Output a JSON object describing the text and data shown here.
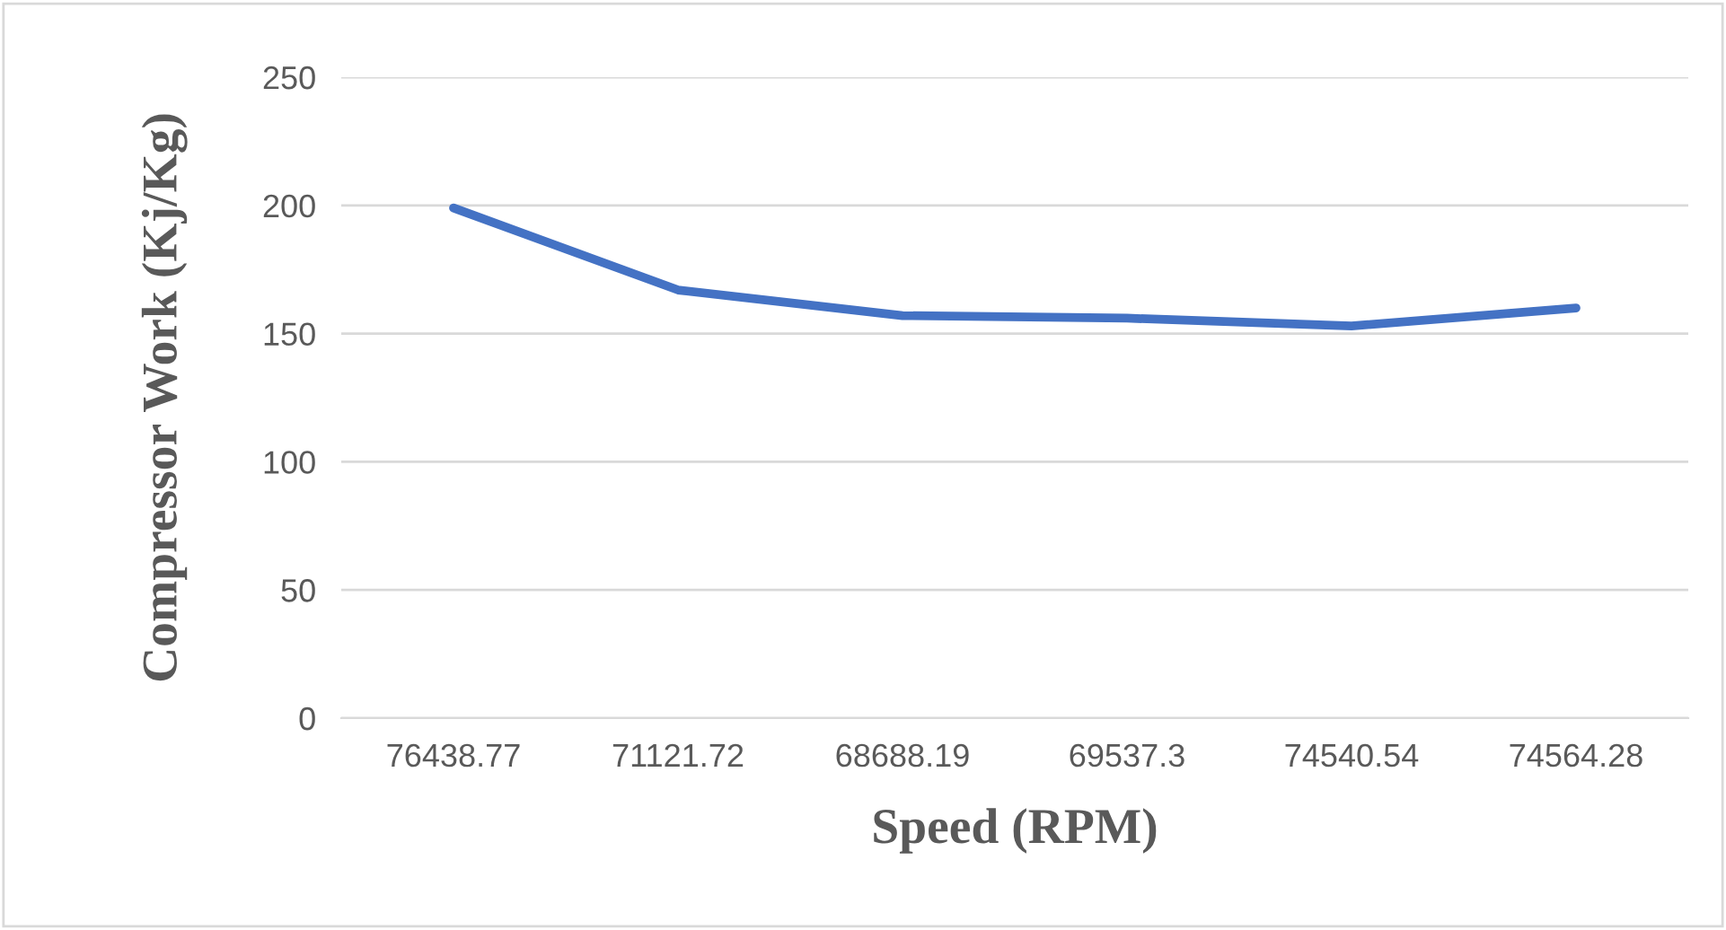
{
  "chart_data": {
    "type": "line",
    "xlabel": "Speed (RPM)",
    "ylabel": "Compressor Work (Kj/Kg)",
    "categories": [
      "76438.77",
      "71121.72",
      "68688.19",
      "69537.3",
      "74540.54",
      "74564.28"
    ],
    "series": [
      {
        "color": "#4472c4",
        "values": [
          199,
          167,
          157,
          156,
          153,
          160
        ]
      }
    ],
    "ylim": [
      0,
      250
    ],
    "yticks": [
      0,
      50,
      100,
      150,
      200,
      250
    ],
    "grid": "y",
    "marker": "none",
    "line_style": "solid"
  }
}
